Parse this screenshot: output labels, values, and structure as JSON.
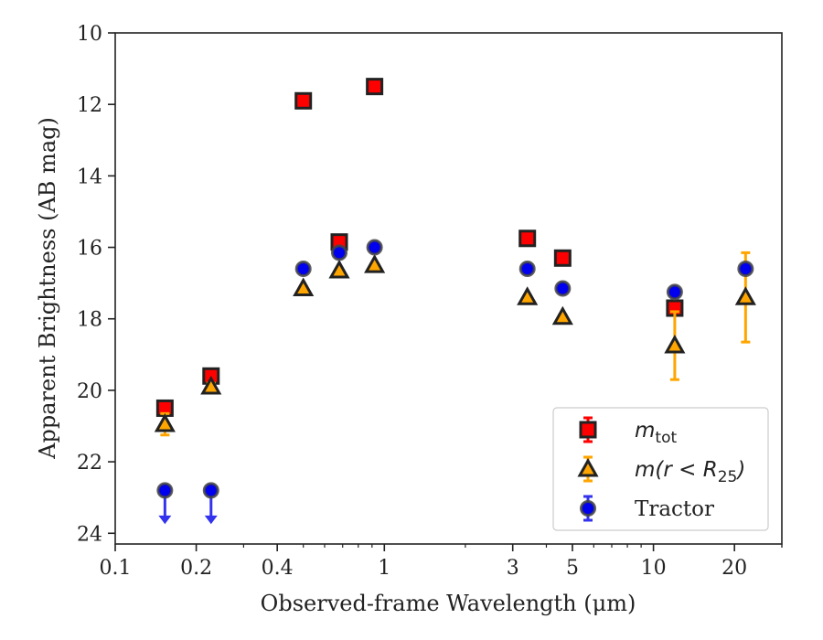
{
  "chart_data": {
    "type": "scatter",
    "title": "",
    "xlabel": "Observed-frame Wavelength (μm)",
    "ylabel": "Apparent Brightness (AB mag)",
    "xscale": "log",
    "xlim": [
      0.1,
      30
    ],
    "ylim": [
      24.3,
      10
    ],
    "y_inverted": true,
    "grid": false,
    "legend_position": "lower-right",
    "x_ticks": [
      {
        "value": 0.1,
        "label": "0.1"
      },
      {
        "value": 0.2,
        "label": "0.2"
      },
      {
        "value": 0.4,
        "label": "0.4"
      },
      {
        "value": 1,
        "label": "1"
      },
      {
        "value": 3,
        "label": "3"
      },
      {
        "value": 5,
        "label": "5"
      },
      {
        "value": 10,
        "label": "10"
      },
      {
        "value": 20,
        "label": "20"
      }
    ],
    "y_ticks": [
      {
        "value": 10,
        "label": "10"
      },
      {
        "value": 12,
        "label": "12"
      },
      {
        "value": 14,
        "label": "14"
      },
      {
        "value": 16,
        "label": "16"
      },
      {
        "value": 18,
        "label": "18"
      },
      {
        "value": 20,
        "label": "20"
      },
      {
        "value": 22,
        "label": "22"
      },
      {
        "value": 24,
        "label": "24"
      }
    ],
    "series": [
      {
        "key": "mtot",
        "marker": "square",
        "color": "#ff0000",
        "edge_color": "#222222",
        "error_color": "#ff0000",
        "points": [
          {
            "x": 0.153,
            "y": 20.5,
            "yerr": 0.1
          },
          {
            "x": 0.227,
            "y": 19.6,
            "yerr": 0.1
          },
          {
            "x": 0.5,
            "y": 11.9,
            "yerr": 0.05
          },
          {
            "x": 0.68,
            "y": 15.85,
            "yerr": 0.05
          },
          {
            "x": 0.92,
            "y": 11.5,
            "yerr": 0.05
          },
          {
            "x": 3.4,
            "y": 15.75,
            "yerr": 0.05
          },
          {
            "x": 4.6,
            "y": 16.3,
            "yerr": 0.05
          },
          {
            "x": 12.0,
            "y": 17.7,
            "yerr": 0.1
          }
        ]
      },
      {
        "key": "mr25",
        "marker": "triangle",
        "color": "#ffa500",
        "edge_color": "#222222",
        "error_color": "#ffa500",
        "points": [
          {
            "x": 0.153,
            "y": 20.95,
            "yerr": 0.3
          },
          {
            "x": 0.227,
            "y": 19.9,
            "yerr": 0.1
          },
          {
            "x": 0.5,
            "y": 17.15,
            "yerr": 0.05
          },
          {
            "x": 0.68,
            "y": 16.65,
            "yerr": 0.05
          },
          {
            "x": 0.92,
            "y": 16.5,
            "yerr": 0.05
          },
          {
            "x": 3.4,
            "y": 17.4,
            "yerr": 0.05
          },
          {
            "x": 4.6,
            "y": 17.95,
            "yerr": 0.05
          },
          {
            "x": 12.0,
            "y": 18.75,
            "yerr": 0.95
          },
          {
            "x": 22.0,
            "y": 17.4,
            "yerr": 1.25
          }
        ]
      },
      {
        "key": "tractor",
        "marker": "circle",
        "color": "#0000ee",
        "edge_color": "#444444",
        "error_color": "#3333ee",
        "points": [
          {
            "x": 0.153,
            "y": 22.8,
            "upper_limit": true
          },
          {
            "x": 0.227,
            "y": 22.8,
            "upper_limit": true
          },
          {
            "x": 0.5,
            "y": 16.6
          },
          {
            "x": 0.68,
            "y": 16.15
          },
          {
            "x": 0.92,
            "y": 16.0
          },
          {
            "x": 3.4,
            "y": 16.6
          },
          {
            "x": 4.6,
            "y": 17.15
          },
          {
            "x": 12.0,
            "y": 17.25
          },
          {
            "x": 22.0,
            "y": 16.6
          }
        ]
      }
    ],
    "legend": [
      {
        "key": "mtot",
        "symbol": "m",
        "subscript": "tot",
        "text": ""
      },
      {
        "key": "mr25",
        "symbol": "m",
        "subscript": "",
        "text": "(r < R",
        "text_sub": "25",
        "text_end": ")"
      },
      {
        "key": "tractor",
        "symbol": "",
        "subscript": "",
        "text": "Tractor"
      }
    ]
  }
}
